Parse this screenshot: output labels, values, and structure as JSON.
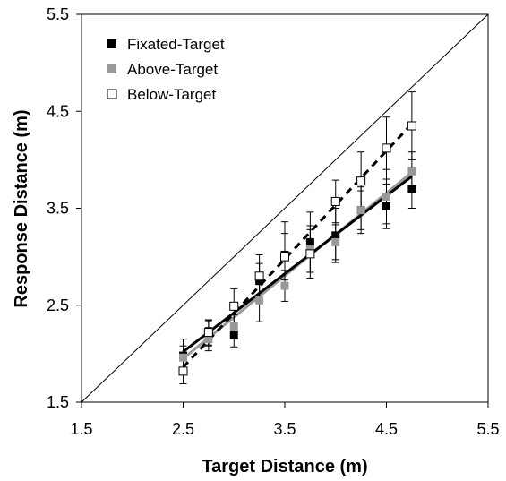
{
  "chart_data": {
    "type": "scatter",
    "xlabel": "Target Distance (m)",
    "ylabel": "Response Distance (m)",
    "xlim": [
      1.5,
      5.5
    ],
    "ylim": [
      1.5,
      5.5
    ],
    "x_ticks": [
      "1.5",
      "2.5",
      "3.5",
      "4.5",
      "5.5"
    ],
    "y_ticks": [
      "1.5",
      "2.5",
      "3.5",
      "4.5",
      "5.5"
    ],
    "grid": false,
    "legend_position": "top-left",
    "reference_line": {
      "x": [
        1.5,
        5.5
      ],
      "y": [
        1.5,
        5.5
      ]
    },
    "series": [
      {
        "name": "Fixated-Target",
        "color": "#000000",
        "marker": "filled-square",
        "fit_line": {
          "x": [
            2.5,
            4.75
          ],
          "y": [
            2.02,
            3.83
          ],
          "style": "solid"
        },
        "points": [
          {
            "x": 2.5,
            "y": 1.98,
            "err": 0.17
          },
          {
            "x": 2.75,
            "y": 2.21,
            "err": 0.13
          },
          {
            "x": 3.0,
            "y": 2.19,
            "err": 0.12
          },
          {
            "x": 3.25,
            "y": 2.75,
            "err": 0.18
          },
          {
            "x": 3.5,
            "y": 3.02,
            "err": 0.34
          },
          {
            "x": 3.75,
            "y": 3.15,
            "err": 0.31
          },
          {
            "x": 4.0,
            "y": 3.22,
            "err": 0.28
          },
          {
            "x": 4.25,
            "y": 3.48,
            "err": 0.24
          },
          {
            "x": 4.5,
            "y": 3.52,
            "err": 0.23
          },
          {
            "x": 4.75,
            "y": 3.7,
            "err": 0.2
          }
        ]
      },
      {
        "name": "Above-Target",
        "color": "#999999",
        "marker": "filled-square",
        "fit_line": {
          "x": [
            2.5,
            4.75
          ],
          "y": [
            1.95,
            3.87
          ],
          "style": "solid"
        },
        "points": [
          {
            "x": 2.5,
            "y": 1.96,
            "err": 0.12
          },
          {
            "x": 2.75,
            "y": 2.15,
            "err": 0.12
          },
          {
            "x": 3.0,
            "y": 2.28,
            "err": 0.12
          },
          {
            "x": 3.25,
            "y": 2.55,
            "err": 0.22
          },
          {
            "x": 3.5,
            "y": 2.7,
            "err": 0.16
          },
          {
            "x": 3.75,
            "y": 3.08,
            "err": 0.24
          },
          {
            "x": 4.0,
            "y": 3.15,
            "err": 0.18
          },
          {
            "x": 4.25,
            "y": 3.48,
            "err": 0.2
          },
          {
            "x": 4.5,
            "y": 3.62,
            "err": 0.28
          },
          {
            "x": 4.75,
            "y": 3.88,
            "err": 0.2
          }
        ]
      },
      {
        "name": "Below-Target",
        "color": "#000000",
        "marker": "open-square",
        "fit_line": {
          "x": [
            2.5,
            4.75
          ],
          "y": [
            1.86,
            4.37
          ],
          "style": "dashed"
        },
        "points": [
          {
            "x": 2.5,
            "y": 1.82,
            "err": 0.13
          },
          {
            "x": 2.75,
            "y": 2.22,
            "err": 0.13
          },
          {
            "x": 3.0,
            "y": 2.49,
            "err": 0.18
          },
          {
            "x": 3.25,
            "y": 2.8,
            "err": 0.22
          },
          {
            "x": 3.5,
            "y": 3.0,
            "err": 0.24
          },
          {
            "x": 3.75,
            "y": 3.03,
            "err": 0.25
          },
          {
            "x": 4.0,
            "y": 3.57,
            "err": 0.22
          },
          {
            "x": 4.25,
            "y": 3.78,
            "err": 0.3
          },
          {
            "x": 4.5,
            "y": 4.12,
            "err": 0.32
          },
          {
            "x": 4.75,
            "y": 4.35,
            "err": 0.35
          }
        ]
      }
    ]
  }
}
